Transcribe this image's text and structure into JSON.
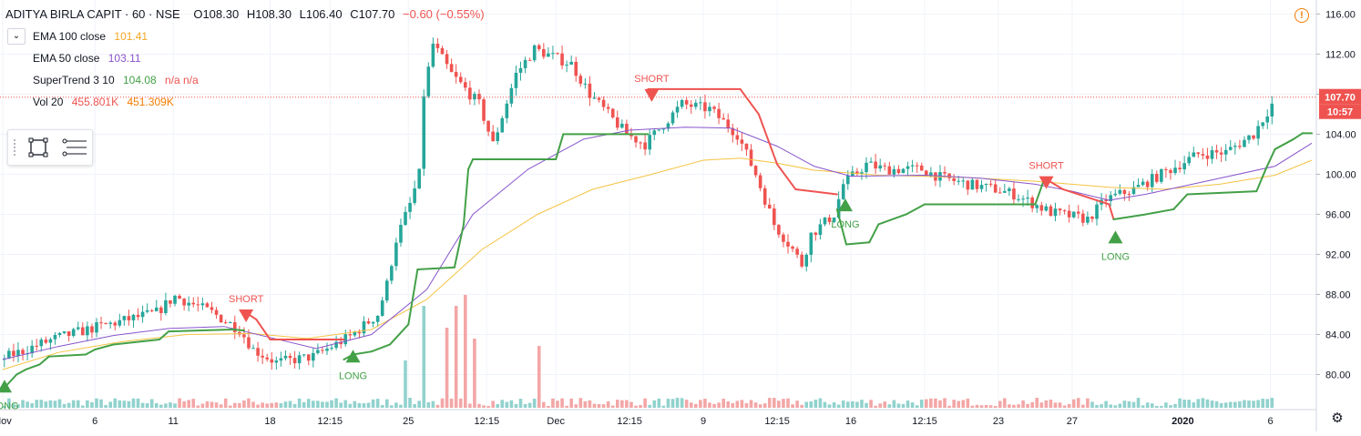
{
  "chart_data": {
    "type": "candlestick",
    "title": "ADITYA BIRLA CAPIT · 60 · NSE",
    "ohlc": {
      "open": "O108.30",
      "high": "H108.30",
      "low": "L106.40",
      "close": "C107.70",
      "change": "−0.60 (−0.55%)"
    },
    "ylim": [
      76.5,
      117.4
    ],
    "y_ticks": [
      80,
      84,
      88,
      92,
      96,
      100,
      104,
      108,
      112,
      116
    ],
    "y_tick_labels": [
      "80.00",
      "84.00",
      "88.00",
      "92.00",
      "96.00",
      "100.00",
      "104.00",
      "108.00",
      "112.00",
      "116.00"
    ],
    "x_tick_labels": [
      "Nov",
      "6",
      "11",
      "18",
      "12:15",
      "25",
      "12:15",
      "Dec",
      "12:15",
      "9",
      "12:15",
      "16",
      "12:15",
      "23",
      "27",
      "2020",
      "6"
    ],
    "x_tick_index": [
      0,
      100,
      185,
      290,
      355,
      440,
      525,
      600,
      680,
      760,
      840,
      920,
      1000,
      1080,
      1160,
      1280,
      1375
    ],
    "bar_count": 1380,
    "last_price": "107.70",
    "countdown": "10:57",
    "last_close": 107.7,
    "price_path": [
      [
        0,
        81.5
      ],
      [
        60,
        83.6
      ],
      [
        100,
        84.6
      ],
      [
        170,
        86.2
      ],
      [
        190,
        87.8
      ],
      [
        230,
        86.2
      ],
      [
        260,
        84.5
      ],
      [
        275,
        82.5
      ],
      [
        300,
        81.2
      ],
      [
        340,
        81.8
      ],
      [
        380,
        83.8
      ],
      [
        410,
        86
      ],
      [
        420,
        89
      ],
      [
        430,
        93.5
      ],
      [
        445,
        97
      ],
      [
        455,
        100
      ],
      [
        460,
        108
      ],
      [
        470,
        113
      ],
      [
        490,
        110
      ],
      [
        520,
        107
      ],
      [
        535,
        103
      ],
      [
        560,
        110
      ],
      [
        580,
        112.5
      ],
      [
        620,
        111
      ],
      [
        640,
        108
      ],
      [
        660,
        106
      ],
      [
        680,
        104
      ],
      [
        700,
        103
      ],
      [
        740,
        107
      ],
      [
        770,
        106.5
      ],
      [
        800,
        104
      ],
      [
        820,
        100
      ],
      [
        840,
        95
      ],
      [
        860,
        92.5
      ],
      [
        870,
        91
      ],
      [
        880,
        94
      ],
      [
        905,
        96
      ],
      [
        915,
        99
      ],
      [
        940,
        101
      ],
      [
        960,
        100.5
      ],
      [
        1000,
        100.5
      ],
      [
        1020,
        99.7
      ],
      [
        1050,
        99
      ],
      [
        1080,
        98.5
      ],
      [
        1100,
        98
      ],
      [
        1140,
        96.2
      ],
      [
        1180,
        95.5
      ],
      [
        1200,
        97.5
      ],
      [
        1230,
        98.5
      ],
      [
        1260,
        100
      ],
      [
        1300,
        102
      ],
      [
        1330,
        102.2
      ],
      [
        1360,
        104
      ],
      [
        1380,
        107
      ],
      [
        1400,
        108
      ],
      [
        1410,
        108.5
      ],
      [
        1420,
        107.7
      ]
    ],
    "ema100": [
      [
        0,
        80.5
      ],
      [
        60,
        82.2
      ],
      [
        130,
        83.3
      ],
      [
        200,
        84
      ],
      [
        270,
        84.1
      ],
      [
        330,
        83.6
      ],
      [
        400,
        84.5
      ],
      [
        460,
        87.5
      ],
      [
        520,
        92.5
      ],
      [
        580,
        96
      ],
      [
        640,
        98.5
      ],
      [
        700,
        99.9
      ],
      [
        760,
        101.4
      ],
      [
        800,
        101.6
      ],
      [
        840,
        101.1
      ],
      [
        880,
        100.4
      ],
      [
        950,
        99.9
      ],
      [
        1040,
        99.7
      ],
      [
        1120,
        99.3
      ],
      [
        1200,
        98.7
      ],
      [
        1260,
        98.5
      ],
      [
        1320,
        99
      ],
      [
        1380,
        99.9
      ],
      [
        1420,
        101.4
      ]
    ],
    "ema50": [
      [
        0,
        81.5
      ],
      [
        60,
        82.8
      ],
      [
        120,
        83.9
      ],
      [
        180,
        84.6
      ],
      [
        240,
        84.8
      ],
      [
        290,
        83.7
      ],
      [
        340,
        82.6
      ],
      [
        400,
        84
      ],
      [
        460,
        88.5
      ],
      [
        510,
        96
      ],
      [
        570,
        100.5
      ],
      [
        630,
        103.5
      ],
      [
        680,
        104.4
      ],
      [
        740,
        104.7
      ],
      [
        790,
        104.6
      ],
      [
        840,
        102.8
      ],
      [
        880,
        100.8
      ],
      [
        920,
        99.8
      ],
      [
        1000,
        99.9
      ],
      [
        1060,
        99.6
      ],
      [
        1120,
        99
      ],
      [
        1160,
        98.3
      ],
      [
        1200,
        97.4
      ],
      [
        1240,
        98
      ],
      [
        1300,
        99.2
      ],
      [
        1380,
        100.8
      ],
      [
        1420,
        103.1
      ]
    ],
    "supertrend": [
      [
        0,
        78.5
      ],
      [
        15,
        80
      ],
      [
        25,
        80.5
      ],
      [
        40,
        81
      ],
      [
        50,
        81.8
      ],
      [
        90,
        82
      ],
      [
        100,
        82.5
      ],
      [
        120,
        83
      ],
      [
        170,
        83.5
      ],
      [
        180,
        84.3
      ],
      [
        250,
        84.5
      ],
      [
        262,
        84.4
      ],
      [
        262,
        86.3
      ],
      [
        275,
        85.5
      ],
      [
        290,
        83.5
      ],
      [
        370,
        83.5
      ],
      [
        370,
        81.5
      ],
      [
        380,
        82
      ],
      [
        400,
        82.3
      ],
      [
        420,
        83
      ],
      [
        440,
        85
      ],
      [
        450,
        90.5
      ],
      [
        490,
        90.7
      ],
      [
        500,
        95
      ],
      [
        505,
        100.5
      ],
      [
        510,
        101.5
      ],
      [
        600,
        101.5
      ],
      [
        608,
        104
      ],
      [
        640,
        104
      ],
      [
        700,
        104
      ],
      [
        700,
        108.5
      ],
      [
        800,
        108.5
      ],
      [
        820,
        106
      ],
      [
        840,
        101
      ],
      [
        860,
        98.5
      ],
      [
        905,
        98
      ],
      [
        905,
        96.5
      ],
      [
        915,
        93
      ],
      [
        940,
        93.2
      ],
      [
        950,
        95
      ],
      [
        980,
        96
      ],
      [
        1000,
        97
      ],
      [
        1120,
        97
      ],
      [
        1130,
        99.6
      ],
      [
        1150,
        98.5
      ],
      [
        1200,
        97
      ],
      [
        1205,
        95.5
      ],
      [
        1240,
        96
      ],
      [
        1270,
        96.5
      ],
      [
        1285,
        98
      ],
      [
        1360,
        98.3
      ],
      [
        1370,
        100.5
      ],
      [
        1380,
        102.5
      ],
      [
        1400,
        103.5
      ],
      [
        1410,
        104.1
      ],
      [
        1420,
        104.1
      ]
    ],
    "supertrend_red_ranges": [
      [
        262,
        370
      ],
      [
        700,
        905
      ],
      [
        1130,
        1205
      ]
    ],
    "signals": [
      {
        "type": "LONG",
        "index": 0,
        "price": 78.2,
        "label": "LONG"
      },
      {
        "type": "SHORT",
        "index": 262,
        "price": 86.5,
        "label": "SHORT"
      },
      {
        "type": "LONG",
        "index": 378,
        "price": 81.2,
        "label": "LONG"
      },
      {
        "type": "SHORT",
        "index": 702,
        "price": 108.5,
        "label": "SHORT"
      },
      {
        "type": "LONG",
        "index": 912,
        "price": 96.3,
        "label": "LONG"
      },
      {
        "type": "SHORT",
        "index": 1130,
        "price": 99.8,
        "label": "SHORT"
      },
      {
        "type": "LONG",
        "index": 1205,
        "price": 93.1,
        "label": "LONG"
      }
    ],
    "volume_spikes": [
      [
        500,
        31
      ],
      [
        455,
        28
      ],
      [
        488,
        28
      ],
      [
        478,
        22
      ],
      [
        508,
        19
      ],
      [
        580,
        17
      ],
      [
        437,
        13
      ]
    ],
    "colors": {
      "up": "#26a69a",
      "down": "#ef5350",
      "ema100": "#f5c343",
      "ema50": "#8855cc",
      "st_up": "#43a047",
      "st_down": "#ef5350",
      "vol_up": "#91d2cd",
      "vol_down": "#f3a6a6",
      "last_line": "#ef5350",
      "grid": "#f0f3fa",
      "axis_text": "#131722"
    }
  },
  "legend": {
    "title": "ADITYA BIRLA CAPIT · 60 · NSE",
    "open": "O108.30",
    "high": "H108.30",
    "low": "L106.40",
    "close": "C107.70",
    "change": "−0.60 (−0.55%)",
    "indicators": [
      {
        "name": "EMA 100 close",
        "value": "101.41",
        "color": "#f5a623"
      },
      {
        "name": "EMA 50 close",
        "value": "103.11",
        "color": "#8855cc"
      },
      {
        "name": "SuperTrend 3 10",
        "value": "104.08",
        "extra": "n/a  n/a",
        "color": "#43a047",
        "extra_color": "#ef5350"
      },
      {
        "name": "Vol 20",
        "value": "455.801K",
        "value2": "451.309K",
        "color": "#ef5350",
        "color2": "#f57c00"
      }
    ]
  },
  "icons": {
    "collapse": "chevron-down-icon",
    "rect": "rectangle-tool-icon",
    "lines": "horizontal-lines-tool-icon",
    "alert": "alert-icon",
    "settings": "gear-icon"
  }
}
